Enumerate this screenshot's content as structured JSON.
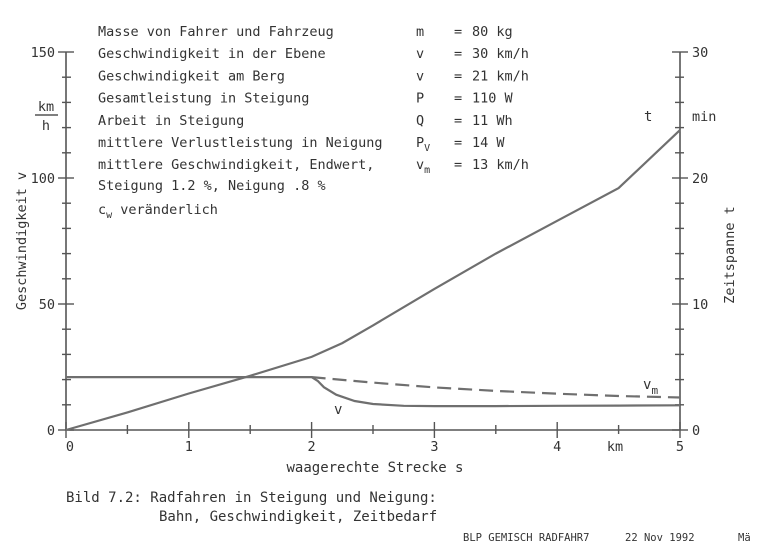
{
  "info_lines": [
    {
      "label": "Masse von Fahrer und Fahrzeug",
      "sym": "m",
      "sub": "",
      "eq": "=",
      "val": "80 kg"
    },
    {
      "label": "Geschwindigkeit in der Ebene",
      "sym": "v",
      "sub": "",
      "eq": "=",
      "val": "30 km/h"
    },
    {
      "label": "Geschwindigkeit am Berg",
      "sym": "v",
      "sub": "",
      "eq": "=",
      "val": "21 km/h"
    },
    {
      "label": "Gesamtleistung in Steigung",
      "sym": "P",
      "sub": "",
      "eq": "=",
      "val": "110 W"
    },
    {
      "label": "Arbeit         in Steigung",
      "sym": "Q",
      "sub": "",
      "eq": "=",
      "val": "11 Wh"
    },
    {
      "label": "mittlere Verlustleistung in Neigung",
      "sym": "P",
      "sub": "V",
      "eq": "=",
      "val": "14 W"
    },
    {
      "label": "mittlere Geschwindigkeit, Endwert,",
      "sym": "v",
      "sub": "m",
      "eq": "=",
      "val": "13 km/h"
    }
  ],
  "extra_lines": {
    "slope": "Steigung  1.2 %, Neigung   .8 %",
    "cw_main": "c",
    "cw_sub": "w",
    "cw_rest": " veränderlich"
  },
  "caption": {
    "line1": "Bild 7.2: Radfahren in Steigung und Neigung:",
    "line2": "Bahn, Geschwindigkeit, Zeitbedarf"
  },
  "footer": {
    "file": "BLP GEMISCH RADFAHR7",
    "date": "22 Nov 1992",
    "initials": "Mä"
  },
  "chart_data": {
    "type": "line",
    "xlabel": "waagerechte Strecke s",
    "xunit": "km",
    "ylabel_left": "Geschwindigkeit v",
    "ylabel_left_unit_num": "km",
    "ylabel_left_unit_den": "h",
    "ylabel_right": "Zeitspanne t",
    "ylabel_right_unit": "min",
    "xlim": [
      0,
      5
    ],
    "ylim_left": [
      0,
      150
    ],
    "ylim_right": [
      0,
      30
    ],
    "x_ticks": [
      0,
      1,
      2,
      3,
      4,
      5
    ],
    "y_left_ticks": [
      0,
      50,
      100,
      150
    ],
    "y_right_ticks": [
      0,
      10,
      20,
      30
    ],
    "x_ticklabels": [
      "0",
      "1",
      "2",
      "3",
      "4",
      "5"
    ],
    "y_left_ticklabels": [
      "0",
      "50",
      "100",
      "150"
    ],
    "y_right_ticklabels": [
      "0",
      "10",
      "20",
      "30"
    ],
    "series": [
      {
        "name": "t",
        "axis": "right",
        "style": "solid",
        "x": [
          0,
          0.5,
          1,
          1.5,
          2,
          2.25,
          2.5,
          3,
          3.5,
          4,
          4.5,
          5
        ],
        "y": [
          0,
          1.4,
          2.9,
          4.3,
          5.8,
          6.9,
          8.3,
          11.2,
          14.0,
          16.6,
          19.2,
          23.8
        ]
      },
      {
        "name": "v",
        "axis": "left",
        "style": "solid",
        "x": [
          0,
          2,
          2.05,
          2.1,
          2.2,
          2.35,
          2.5,
          2.75,
          3,
          3.5,
          4,
          4.5,
          5
        ],
        "y": [
          21,
          21,
          19.5,
          17,
          14,
          11.5,
          10.3,
          9.6,
          9.5,
          9.5,
          9.6,
          9.7,
          9.8
        ]
      },
      {
        "name": "v_m",
        "axis": "left",
        "style": "dashed",
        "x": [
          2,
          2.5,
          3,
          3.5,
          4,
          4.5,
          5
        ],
        "y": [
          21,
          18.8,
          16.9,
          15.5,
          14.4,
          13.5,
          12.9
        ]
      }
    ],
    "annotations": [
      {
        "text": "t",
        "sub": "",
        "series": "t"
      },
      {
        "text": "v",
        "sub": "",
        "series": "v"
      },
      {
        "text": "v",
        "sub": "m",
        "series": "v_m"
      }
    ]
  }
}
